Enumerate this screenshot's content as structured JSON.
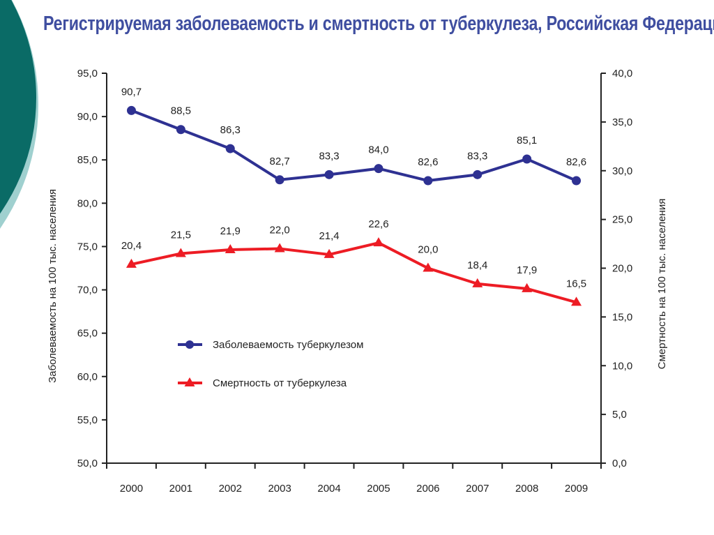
{
  "page": {
    "title": "Регистрируемая заболеваемость и смертность от туберкулеза, Российская Федерация"
  },
  "colors": {
    "incidence": "#2e3192",
    "mortality": "#ed1c24",
    "title": "#3f4ea0",
    "deco_dark": "#0a6b66",
    "deco_light": "#9fd0cf"
  },
  "chart_data": {
    "type": "line",
    "title": "Регистрируемая заболеваемость и смертность от туберкулеза, Российская Федерация",
    "categories": [
      "2000",
      "2001",
      "2002",
      "2003",
      "2004",
      "2005",
      "2006",
      "2007",
      "2008",
      "2009"
    ],
    "y_left": {
      "label": "Заболеваемость на 100 тыс. населения",
      "range": [
        50,
        95
      ],
      "ticks": [
        "50,0",
        "55,0",
        "60,0",
        "65,0",
        "70,0",
        "75,0",
        "80,0",
        "85,0",
        "90,0",
        "95,0"
      ]
    },
    "y_right": {
      "label": "Смертность на 100 тыс. населения",
      "range": [
        0,
        40
      ],
      "ticks": [
        "0,0",
        "5,0",
        "10,0",
        "15,0",
        "20,0",
        "25,0",
        "30,0",
        "35,0",
        "40,0"
      ]
    },
    "series": [
      {
        "name": "Заболеваемость туберкулезом",
        "axis": "left",
        "marker": "circle",
        "color": "#2e3192",
        "values": [
          90.7,
          88.5,
          86.3,
          82.7,
          83.3,
          84.0,
          82.6,
          83.3,
          85.1,
          82.6
        ],
        "labels": [
          "90,7",
          "88,5",
          "86,3",
          "82,7",
          "83,3",
          "84,0",
          "82,6",
          "83,3",
          "85,1",
          "82,6"
        ]
      },
      {
        "name": "Смертность от туберкулеза",
        "axis": "right",
        "marker": "triangle",
        "color": "#ed1c24",
        "values": [
          20.4,
          21.5,
          21.9,
          22.0,
          21.4,
          22.6,
          20.0,
          18.4,
          17.9,
          16.5
        ],
        "labels": [
          "20,4",
          "21,5",
          "21,9",
          "22,0",
          "21,4",
          "22,6",
          "20,0",
          "18,4",
          "17,9",
          "16,5"
        ]
      }
    ],
    "legend_position": "center-left",
    "grid": false
  }
}
